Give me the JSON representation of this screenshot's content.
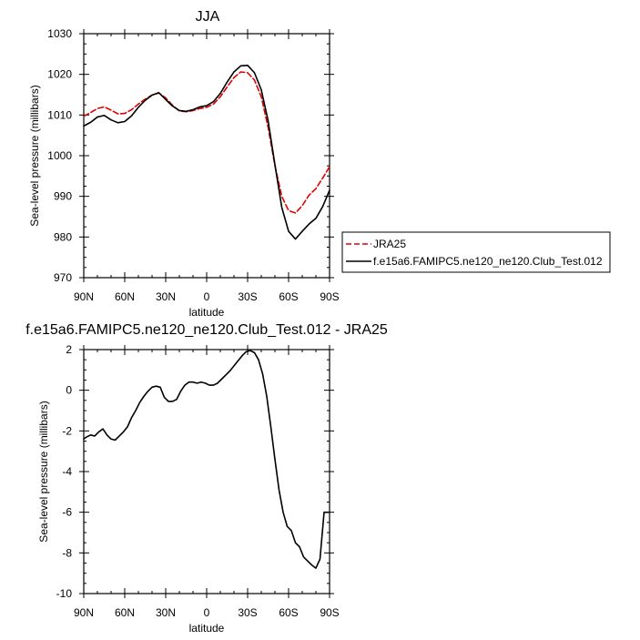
{
  "chart_data": [
    {
      "type": "line",
      "title": "JJA",
      "xlabel": "latitude",
      "ylabel": "Sea-level pressure (millibars)",
      "x_tick_labels": [
        "90N",
        "60N",
        "30N",
        "0",
        "30S",
        "60S",
        "90S"
      ],
      "x_ticks": [
        -90,
        -60,
        -30,
        0,
        30,
        60,
        90
      ],
      "xlim": [
        -90,
        90
      ],
      "ylim": [
        970,
        1030
      ],
      "y_ticks": [
        970,
        980,
        990,
        1000,
        1010,
        1020,
        1030
      ],
      "grid": false,
      "legend": "right, outside plot",
      "series": [
        {
          "name": "JRA25",
          "color": "#dd0000",
          "dash": "dashed",
          "x": [
            -90,
            -85,
            -80,
            -75,
            -70,
            -65,
            -60,
            -55,
            -50,
            -45,
            -40,
            -35,
            -30,
            -25,
            -20,
            -15,
            -10,
            -5,
            0,
            5,
            10,
            15,
            20,
            25,
            30,
            35,
            40,
            45,
            50,
            55,
            60,
            65,
            70,
            75,
            80,
            85,
            90
          ],
          "y": [
            1009.7,
            1010.6,
            1011.6,
            1012.0,
            1011.2,
            1010.3,
            1010.4,
            1011.3,
            1012.7,
            1013.9,
            1014.9,
            1015.4,
            1014.2,
            1012.4,
            1011.0,
            1010.8,
            1011.1,
            1011.6,
            1011.9,
            1012.7,
            1014.5,
            1016.9,
            1019.2,
            1020.6,
            1020.4,
            1018.6,
            1014.5,
            1007.0,
            997.5,
            990.0,
            986.5,
            985.9,
            987.7,
            990.3,
            991.9,
            994.5,
            997.3
          ]
        },
        {
          "name": "f.e15a6.FAMIPC5.ne120_ne120.Club_Test.012",
          "color": "#000000",
          "dash": "solid",
          "x": [
            -90,
            -85,
            -80,
            -75,
            -70,
            -65,
            -60,
            -55,
            -50,
            -45,
            -40,
            -35,
            -30,
            -25,
            -20,
            -15,
            -10,
            -5,
            0,
            5,
            10,
            15,
            20,
            25,
            30,
            35,
            40,
            45,
            50,
            55,
            60,
            65,
            70,
            75,
            80,
            85,
            90
          ],
          "y": [
            1007.3,
            1008.2,
            1009.5,
            1009.9,
            1008.8,
            1008.1,
            1008.4,
            1009.8,
            1011.9,
            1013.6,
            1014.9,
            1015.5,
            1013.8,
            1012.2,
            1011.1,
            1010.9,
            1011.3,
            1012.0,
            1012.3,
            1013.3,
            1015.3,
            1018.1,
            1020.6,
            1022.1,
            1022.2,
            1020.4,
            1016.2,
            1008.6,
            997.8,
            987.3,
            981.4,
            979.5,
            981.4,
            983.2,
            984.6,
            987.5,
            991.5
          ]
        }
      ]
    },
    {
      "type": "line",
      "title": "f.e15a6.FAMIPC5.ne120_ne120.Club_Test.012 - JRA25",
      "xlabel": "latitude",
      "ylabel": "Sea-level pressure (millibars)",
      "x_tick_labels": [
        "90N",
        "60N",
        "30N",
        "0",
        "30S",
        "60S",
        "90S"
      ],
      "x_ticks": [
        -90,
        -60,
        -30,
        0,
        30,
        60,
        90
      ],
      "xlim": [
        -90,
        90
      ],
      "ylim": [
        -10,
        2
      ],
      "y_ticks": [
        -10,
        -8,
        -6,
        -4,
        -2,
        0,
        2
      ],
      "grid": false,
      "series": [
        {
          "color": "#000000",
          "dash": "solid",
          "x": [
            -90,
            -88,
            -85,
            -82,
            -79,
            -76,
            -73,
            -70,
            -67,
            -64,
            -61,
            -58,
            -55,
            -52,
            -49,
            -46,
            -43,
            -40,
            -37,
            -34,
            -31,
            -28,
            -25,
            -22,
            -19,
            -16,
            -13,
            -10,
            -7,
            -4,
            -1,
            2,
            5,
            8,
            11,
            14,
            17,
            20,
            23,
            26,
            29,
            32,
            35,
            38,
            41,
            44,
            47,
            50,
            53,
            56,
            59,
            62,
            65,
            68,
            71,
            74,
            77,
            80,
            83,
            86,
            88,
            90
          ],
          "y": [
            -2.4,
            -2.3,
            -2.2,
            -2.25,
            -2.05,
            -1.9,
            -2.2,
            -2.4,
            -2.45,
            -2.25,
            -2.05,
            -1.8,
            -1.35,
            -1.0,
            -0.6,
            -0.3,
            -0.05,
            0.15,
            0.2,
            0.15,
            -0.35,
            -0.55,
            -0.55,
            -0.45,
            -0.05,
            0.25,
            0.4,
            0.4,
            0.35,
            0.4,
            0.35,
            0.25,
            0.25,
            0.35,
            0.55,
            0.75,
            0.95,
            1.2,
            1.45,
            1.7,
            1.9,
            1.95,
            1.85,
            1.5,
            0.8,
            -0.3,
            -1.8,
            -3.4,
            -4.9,
            -6.0,
            -6.7,
            -6.9,
            -7.5,
            -7.7,
            -8.2,
            -8.4,
            -8.6,
            -8.75,
            -8.3,
            -6.0,
            -6.0,
            -6.0
          ]
        }
      ]
    }
  ]
}
